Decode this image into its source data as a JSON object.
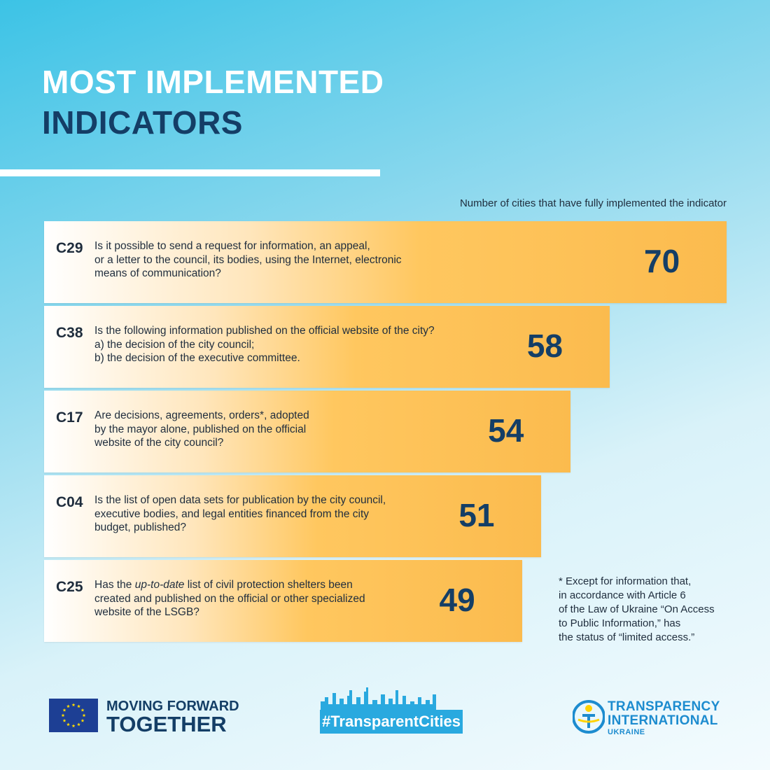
{
  "title": {
    "line1": "MOST IMPLEMENTED",
    "line2": "INDICATORS"
  },
  "colors": {
    "accent_dark": "#143e66",
    "bar": "#fbbb4e",
    "brand_blue": "#29a9df"
  },
  "chart_data": {
    "type": "bar",
    "orientation": "horizontal",
    "title": "MOST IMPLEMENTED INDICATORS",
    "subtitle": "Number of cities that have fully implemented the indicator",
    "categories": [
      "C29",
      "C38",
      "C17",
      "C04",
      "C25"
    ],
    "values": [
      70,
      58,
      54,
      51,
      49
    ],
    "items": [
      {
        "code": "C29",
        "value": "70",
        "question": "Is it possible to send a request for information, an appeal,\nor a letter to the council, its bodies, using the Internet, electronic\nmeans of communication?"
      },
      {
        "code": "C38",
        "value": "58",
        "question": "Is the following information published on the official website of the city?\na) the decision of the city council;\nb) the decision of the executive committee."
      },
      {
        "code": "C17",
        "value": "54",
        "question": "Are decisions, agreements, orders*, adopted\nby the mayor alone, published on the official\nwebsite of the city council?"
      },
      {
        "code": "C04",
        "value": "51",
        "question": "Is the list of open data sets for publication by the city council,\nexecutive bodies, and legal entities financed from the city\nbudget, published?"
      },
      {
        "code": "C25",
        "value": "49",
        "question_pre": "Has the ",
        "question_em": "up-to-date",
        "question_post": " list of civil protection shelters been\ncreated and published on the official or other specialized\nwebsite of the LSGB?"
      }
    ]
  },
  "footnote": "* Except for information that,\nin accordance with Article 6\nof the Law of Ukraine “On Access\nto Public Information,” has\nthe status of “limited access.”",
  "footer": {
    "eu_line1": "MOVING FORWARD",
    "eu_line2": "TOGETHER",
    "hashtag": "#TransparentCities",
    "ti_line1": "TRANSPARENCY",
    "ti_line2": "INTERNATIONAL",
    "ti_line3": "UKRAINE"
  }
}
